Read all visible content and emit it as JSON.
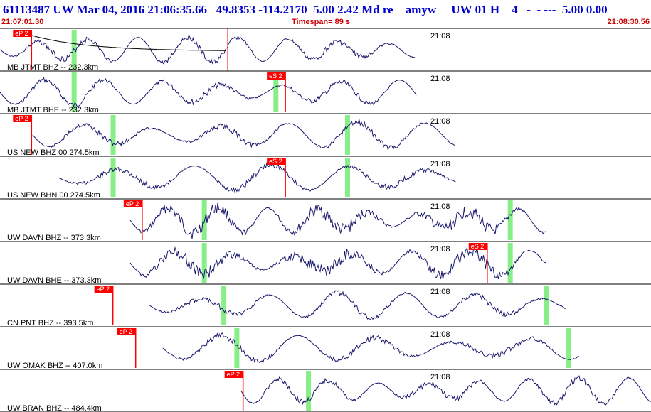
{
  "header": {
    "event_line": "61113487 UW Mar 04, 2016 21:06:35.66   49.8353 -114.2170  5.00 2.42 Md re    amyw     UW 01 H    4   -  - ---  5.00 0.00",
    "start_time": "21:07:01.30",
    "timespan": "Timespan=  89 s",
    "end_time": "21:08:30.56"
  },
  "colors": {
    "trace": "#1a1a6e",
    "pick_box": "#ff0000",
    "pick_text": "#ffffff",
    "window": "#88ee88",
    "separator": "#000000",
    "header_text": "#0000cc",
    "time_text": "#cc0000"
  },
  "time_mark": "21:08",
  "traces": [
    {
      "label": "MB JTMT BHZ -- 232.3km",
      "pick": "eP 2",
      "pick_pos": 0.02,
      "second_pick": "",
      "second_pos": 0,
      "green": [
        0.11
      ],
      "seed": 3,
      "start": 0.0,
      "end": 0.64,
      "curve": true
    },
    {
      "label": "MB JTMT BHE -- 232.3km",
      "pick": "eS 2",
      "pick_pos": 0.41,
      "second_pick": "",
      "second_pos": 0,
      "green": [
        0.11,
        0.42
      ],
      "seed": 7,
      "start": 0.0,
      "end": 0.64,
      "curve": false
    },
    {
      "label": "US NEW BHZ 00 274.5km",
      "pick": "eP 2",
      "pick_pos": 0.02,
      "second_pick": "",
      "second_pos": 0,
      "green": [
        0.17,
        0.53
      ],
      "seed": 11,
      "start": 0.05,
      "end": 0.7,
      "curve": false
    },
    {
      "label": "US NEW BHN 00 274.5km",
      "pick": "eS 2",
      "pick_pos": 0.41,
      "second_pick": "",
      "second_pos": 0,
      "green": [
        0.17,
        0.53
      ],
      "seed": 13,
      "start": 0.09,
      "end": 0.7,
      "curve": false
    },
    {
      "label": "UW DAVN BHZ -- 373.3km",
      "pick": "eP 2",
      "pick_pos": 0.19,
      "second_pick": "",
      "second_pos": 0,
      "green": [
        0.31,
        0.78
      ],
      "seed": 17,
      "start": 0.2,
      "end": 0.84,
      "curve": false
    },
    {
      "label": "UW DAVN BHE -- 373.3km",
      "pick": "eS 2",
      "pick_pos": 0.72,
      "second_pick": "",
      "second_pos": 0,
      "green": [
        0.31,
        0.78
      ],
      "seed": 19,
      "start": 0.2,
      "end": 0.84,
      "curve": false
    },
    {
      "label": "CN PNT BHZ -- 393.5km",
      "pick": "eP 2",
      "pick_pos": 0.145,
      "second_pick": "",
      "second_pos": 0,
      "green": [
        0.34,
        0.835
      ],
      "seed": 23,
      "start": 0.23,
      "end": 0.87,
      "curve": false
    },
    {
      "label": "UW OMAK BHZ -- 407.0km",
      "pick": "eP 2",
      "pick_pos": 0.18,
      "second_pick": "",
      "second_pos": 0,
      "green": [
        0.36,
        0.87
      ],
      "seed": 29,
      "start": 0.25,
      "end": 0.89,
      "curve": false
    },
    {
      "label": "UW BRAN BHZ -- 484.4km",
      "pick": "eP 2",
      "pick_pos": 0.345,
      "second_pick": "",
      "second_pos": 0,
      "green": [
        0.47
      ],
      "seed": 31,
      "start": 0.37,
      "end": 1.0,
      "curve": false
    }
  ]
}
